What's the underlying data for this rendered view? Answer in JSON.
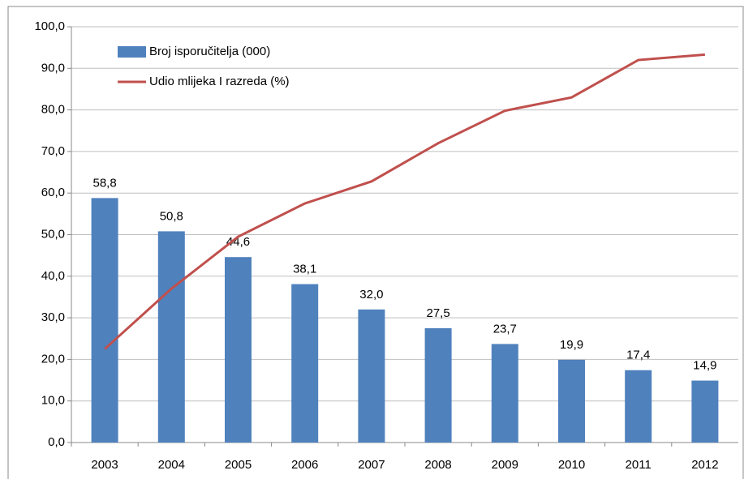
{
  "chart_data": {
    "type": "combo",
    "categories": [
      "2003",
      "2004",
      "2005",
      "2006",
      "2007",
      "2008",
      "2009",
      "2010",
      "2011",
      "2012"
    ],
    "series": [
      {
        "name": "Broj isporučitelja (000)",
        "type": "bar",
        "color": "#4f81bd",
        "values": [
          58.8,
          50.8,
          44.6,
          38.1,
          32.0,
          27.5,
          23.7,
          19.9,
          17.4,
          14.9
        ],
        "value_labels": [
          "58,8",
          "50,8",
          "44,6",
          "38,1",
          "32,0",
          "27,5",
          "23,7",
          "19,9",
          "17,4",
          "14,9"
        ]
      },
      {
        "name": "Udio mlijeka I razreda (%)",
        "type": "line",
        "color": "#c0504d",
        "values": [
          22.5,
          37,
          49.5,
          57.5,
          62.8,
          72,
          79.8,
          83,
          92,
          93.3
        ]
      }
    ],
    "ylim": [
      0,
      100
    ],
    "yticks": [
      {
        "value": 0,
        "label": "0,0"
      },
      {
        "value": 10,
        "label": "10,0"
      },
      {
        "value": 20,
        "label": "20,0"
      },
      {
        "value": 30,
        "label": "30,0"
      },
      {
        "value": 40,
        "label": "40,0"
      },
      {
        "value": 50,
        "label": "50,0"
      },
      {
        "value": 60,
        "label": "60,0"
      },
      {
        "value": 70,
        "label": "70,0"
      },
      {
        "value": 80,
        "label": "80,0"
      },
      {
        "value": 90,
        "label": "90,0"
      },
      {
        "value": 100,
        "label": "100,0"
      }
    ],
    "grid": true
  }
}
